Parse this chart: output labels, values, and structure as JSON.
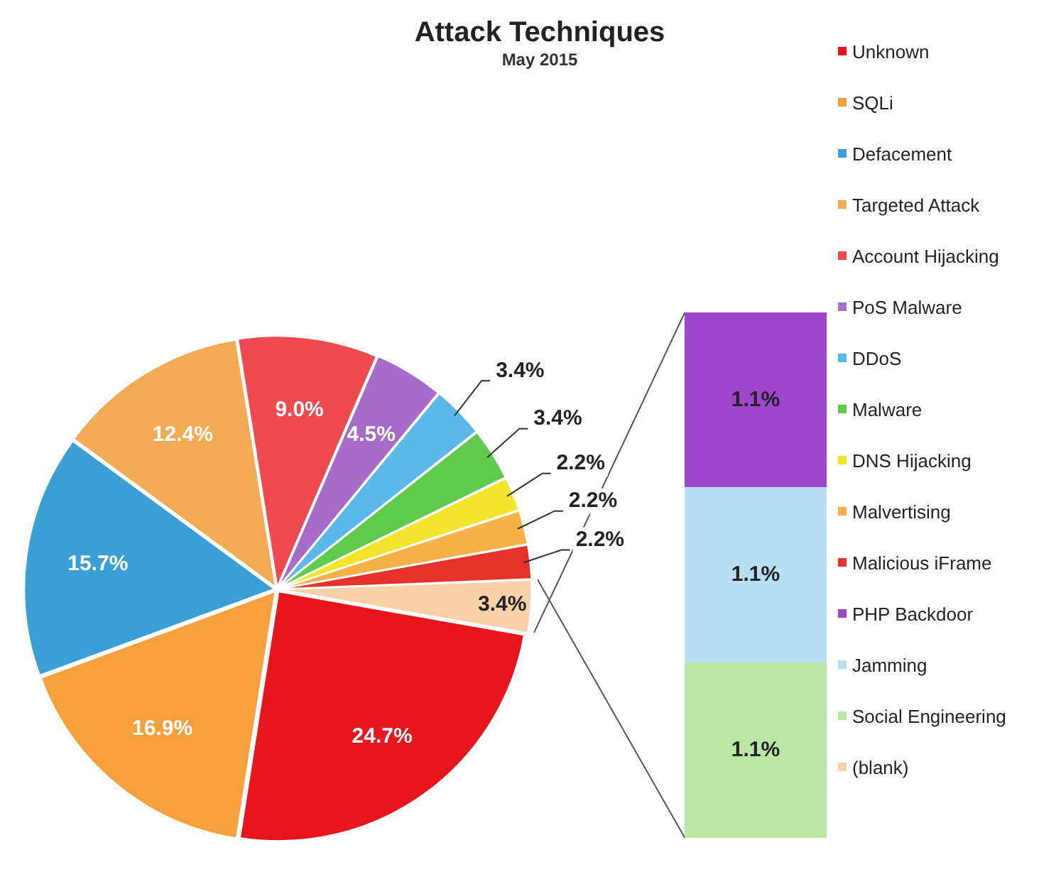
{
  "chart_data": [
    {
      "type": "pie",
      "title": "Attack Techniques",
      "subtitle": "May 2015",
      "legend": "right",
      "categories": [
        "Unknown",
        "SQLi",
        "Defacement",
        "Targeted Attack",
        "Account Hijacking",
        "PoS Malware",
        "DDoS",
        "Malware",
        "DNS Hijacking",
        "Malvertising",
        "Malicious iFrame",
        "(blank)"
      ],
      "values": [
        24.7,
        16.9,
        15.7,
        12.4,
        9.0,
        4.5,
        3.4,
        3.4,
        2.2,
        2.2,
        2.2,
        3.4
      ],
      "value_labels": [
        "24.7%",
        "16.9%",
        "15.7%",
        "12.4%",
        "9.0%",
        "4.5%",
        "3.4%",
        "3.4%",
        "2.2%",
        "2.2%",
        "2.2%",
        "3.4%"
      ],
      "colors": [
        "#e8161c",
        "#f5a03c",
        "#3b9fd5",
        "#f2aa55",
        "#ef4a50",
        "#a76bc9",
        "#5bb9ea",
        "#5fca4c",
        "#f3e52c",
        "#f5b245",
        "#e5332c",
        "#f8d2a6"
      ]
    },
    {
      "type": "bar",
      "stacked": true,
      "legend": "right",
      "categories": [
        null
      ],
      "series": [
        {
          "name": "Social Engineering",
          "color": "#bbe6a6",
          "values": [
            1.1
          ],
          "value_labels": [
            "1.1%"
          ]
        },
        {
          "name": "Jamming",
          "color": "#b8def3",
          "values": [
            1.1
          ],
          "value_labels": [
            "1.1%"
          ]
        },
        {
          "name": "PHP Backdoor",
          "color": "#9d48cc",
          "values": [
            1.1
          ],
          "value_labels": [
            "1.1%"
          ]
        }
      ]
    }
  ]
}
